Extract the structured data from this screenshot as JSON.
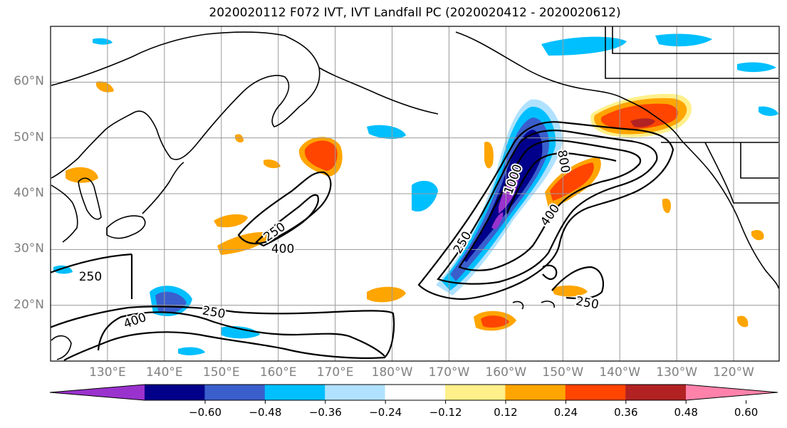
{
  "title": "2020020112 F072 IVT, IVT Landfall PC (2020020412 - 2020020612)",
  "lat_labels": [
    {
      "lat": 60,
      "text": "60°N"
    },
    {
      "lat": 50,
      "text": "50°N"
    },
    {
      "lat": 40,
      "text": "40°N"
    },
    {
      "lat": 30,
      "text": "30°N"
    },
    {
      "lat": 20,
      "text": "20°N"
    }
  ],
  "lon_labels": [
    {
      "lon": 130,
      "text": "130°E"
    },
    {
      "lon": 140,
      "text": "140°E"
    },
    {
      "lon": 150,
      "text": "150°E"
    },
    {
      "lon": 160,
      "text": "160°E"
    },
    {
      "lon": 170,
      "text": "170°E"
    },
    {
      "lon": 180,
      "text": "180°W"
    },
    {
      "lon": 190,
      "text": "170°W"
    },
    {
      "lon": 200,
      "text": "160°W"
    },
    {
      "lon": 210,
      "text": "150°W"
    },
    {
      "lon": 220,
      "text": "140°W"
    },
    {
      "lon": 230,
      "text": "130°W"
    },
    {
      "lon": 240,
      "text": "120°W"
    }
  ],
  "map_extent": {
    "lon_min": 120,
    "lon_max": 248,
    "lat_min": 10,
    "lat_max": 70
  },
  "contour_labels": [
    {
      "text": "250",
      "lon": 127,
      "lat": 25.2,
      "rot": 0
    },
    {
      "text": "400",
      "lon": 134.8,
      "lat": 17.3,
      "rot": -20
    },
    {
      "text": "250",
      "lon": 148.7,
      "lat": 18.8,
      "rot": 10
    },
    {
      "text": "250",
      "lon": 159.3,
      "lat": 33.2,
      "rot": -35
    },
    {
      "text": "400",
      "lon": 160.8,
      "lat": 30.2,
      "rot": 0
    },
    {
      "text": "250",
      "lon": 192.3,
      "lat": 31.3,
      "rot": -60
    },
    {
      "text": "1000",
      "lon": 201.2,
      "lat": 42.6,
      "rot": -70
    },
    {
      "text": "800",
      "lon": 210.2,
      "lat": 45.8,
      "rot": 80
    },
    {
      "text": "400",
      "lon": 207.7,
      "lat": 36.2,
      "rot": -55
    },
    {
      "text": "250",
      "lon": 214.3,
      "lat": 20.5,
      "rot": 10
    }
  ],
  "colorbar": {
    "colors": [
      "#9a32cd",
      "#00008b",
      "#3a5fcd",
      "#00bfff",
      "#b0e2ff",
      "#ffffff",
      "#fff08a",
      "#ffa500",
      "#ff4500",
      "#b22222",
      "#ff82ab"
    ],
    "ticks": [
      "−0.60",
      "−0.48",
      "−0.36",
      "−0.24",
      "−0.12",
      "0.12",
      "0.24",
      "0.36",
      "0.48",
      "0.60"
    ]
  }
}
